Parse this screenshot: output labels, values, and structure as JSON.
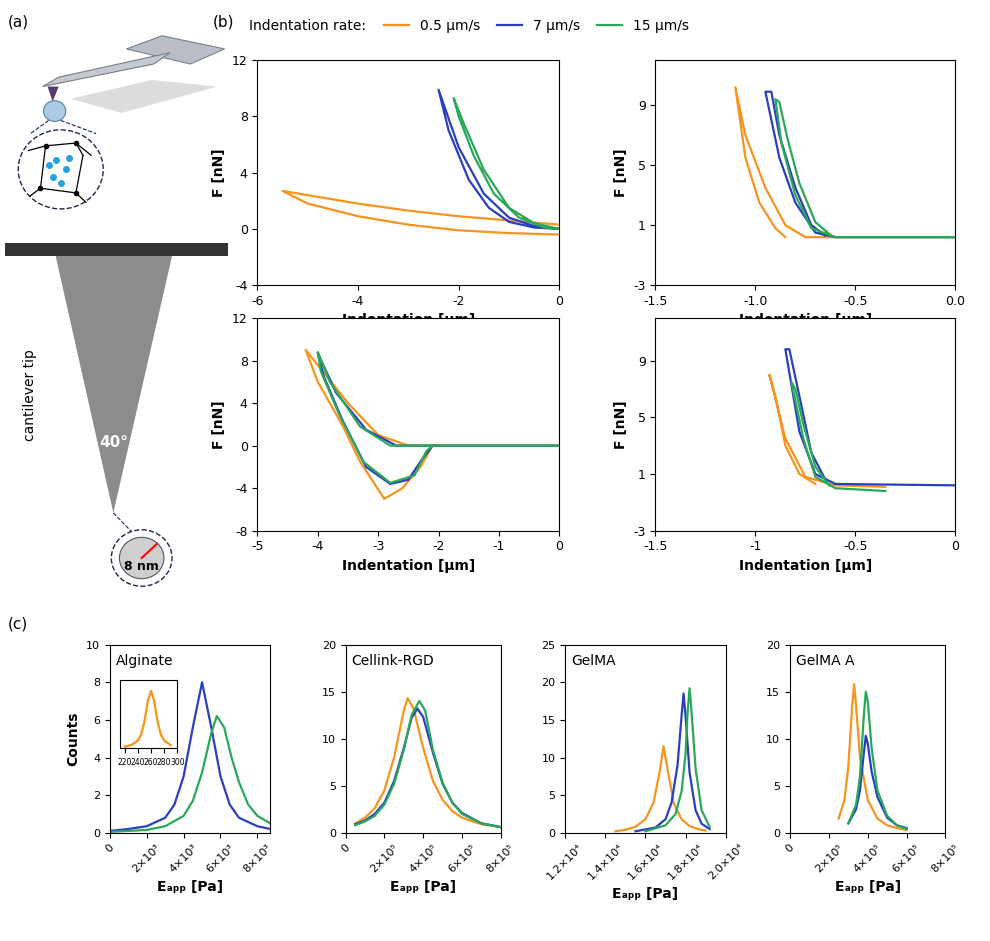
{
  "panel_labels": [
    "(a)",
    "(b)",
    "(c)"
  ],
  "diagram": {
    "tip_label": "cantilever tip",
    "angle": "40°",
    "radius": "8 nm"
  },
  "legend_title": "Indentation rate:",
  "chart_data": [
    {
      "type": "line",
      "x_label": "Indentation [µm]",
      "y_label": "F [nN]",
      "xlim": [
        -6,
        0
      ],
      "ylim": [
        -4,
        12
      ],
      "xticks": [
        -6,
        -4,
        -2,
        0
      ],
      "yticks": [
        -4,
        0,
        4,
        8,
        12
      ],
      "series": [
        {
          "name": "0.5 µm/s",
          "color": "#f7941d",
          "x": [
            0,
            -1,
            -2,
            -3,
            -4,
            -5,
            -5.5,
            -5,
            -4,
            -3,
            -2,
            -1,
            0
          ],
          "values": [
            0.3,
            0.6,
            0.9,
            1.3,
            1.8,
            2.4,
            2.7,
            1.8,
            0.9,
            0.3,
            -0.1,
            -0.3,
            -0.4
          ]
        },
        {
          "name": "7 µm/s",
          "color": "#2a3fbf",
          "x": [
            0,
            -0.5,
            -1,
            -1.5,
            -2,
            -2.4,
            -2.2,
            -1.8,
            -1.4,
            -1,
            -0.5,
            0
          ],
          "values": [
            0,
            0.2,
            0.8,
            2.5,
            5.8,
            9.9,
            7.0,
            3.5,
            1.5,
            0.5,
            0.1,
            0
          ]
        },
        {
          "name": "15 µm/s",
          "color": "#2aa85a",
          "x": [
            0,
            -0.5,
            -1,
            -1.5,
            -1.9,
            -2.1,
            -2.0,
            -1.7,
            -1.3,
            -0.8,
            -0.3,
            0
          ],
          "values": [
            0,
            0.4,
            1.5,
            4.2,
            7.5,
            9.3,
            8.0,
            5.2,
            2.5,
            0.8,
            0.1,
            0
          ]
        }
      ]
    },
    {
      "type": "line",
      "x_label": "Indentation [µm]",
      "y_label": "F [nN]",
      "xlim": [
        -1.5,
        0
      ],
      "ylim": [
        -3,
        12
      ],
      "xticks": [
        -1.5,
        {
          "value": -1,
          "label": "-1.0"
        },
        -0.5,
        {
          "value": 0,
          "label": "0.0"
        }
      ],
      "yticks": [
        -3,
        1,
        5,
        9
      ],
      "series": [
        {
          "name": "0.5 µm/s",
          "color": "#f7941d",
          "x": [
            0,
            -0.5,
            -0.75,
            -0.85,
            -0.95,
            -1.05,
            -1.1,
            -1.05,
            -0.98,
            -0.9,
            -0.85
          ],
          "values": [
            0.2,
            0.2,
            0.2,
            1.0,
            3.5,
            7.0,
            10.2,
            5.5,
            2.5,
            0.8,
            0.2
          ]
        },
        {
          "name": "7 µm/s",
          "color": "#2a3fbf",
          "x": [
            0,
            -0.6,
            -0.7,
            -0.8,
            -0.88,
            -0.95,
            -0.92,
            -0.88,
            -0.8,
            -0.72,
            -0.65
          ],
          "values": [
            0.2,
            0.2,
            0.5,
            2.5,
            5.5,
            9.9,
            9.9,
            7.0,
            3.5,
            1.0,
            0.3
          ]
        },
        {
          "name": "15 µm/s",
          "color": "#2aa85a",
          "x": [
            0,
            -0.6,
            -0.72,
            -0.8,
            -0.87,
            -0.9,
            -0.88,
            -0.84,
            -0.78,
            -0.7,
            -0.62
          ],
          "values": [
            0.2,
            0.2,
            0.8,
            3.0,
            6.5,
            9.4,
            9.2,
            6.8,
            3.8,
            1.2,
            0.3
          ]
        }
      ]
    },
    {
      "type": "line",
      "x_label": "Indentation [µm]",
      "y_label": "F [nN]",
      "xlim": [
        -5,
        0
      ],
      "ylim": [
        -8,
        12
      ],
      "xticks": [
        -5,
        -4,
        -3,
        -2,
        -1,
        0
      ],
      "yticks": [
        -8,
        -4,
        0,
        4,
        8,
        12
      ],
      "series": [
        {
          "name": "0.5 µm/s",
          "color": "#f7941d",
          "x": [
            0,
            -2,
            -2.5,
            -3,
            -3.5,
            -4.2,
            -4.0,
            -3.6,
            -3.3,
            -2.9,
            -2.6,
            -2.3,
            -2.1,
            -2
          ],
          "values": [
            0,
            0,
            0,
            1,
            4,
            9,
            6,
            2,
            -1.5,
            -5,
            -4,
            -2,
            0,
            0
          ]
        },
        {
          "name": "7 µm/s",
          "color": "#2a3fbf",
          "x": [
            0,
            -2.7,
            -3.2,
            -3.7,
            -4.0,
            -3.9,
            -3.6,
            -3.2,
            -2.8,
            -2.5,
            -2.3,
            -2.1
          ],
          "values": [
            0,
            0,
            1.5,
            5,
            8.7,
            6.5,
            2.5,
            -2,
            -3.6,
            -3.2,
            -1.5,
            0
          ]
        },
        {
          "name": "15 µm/s",
          "color": "#2aa85a",
          "x": [
            0,
            -2.8,
            -3.3,
            -3.8,
            -4.0,
            -3.95,
            -3.65,
            -3.25,
            -2.8,
            -2.4,
            -2.2,
            -2.1
          ],
          "values": [
            0,
            0,
            1.8,
            6,
            8.8,
            7,
            3,
            -1.5,
            -3.5,
            -2.8,
            -0.5,
            0
          ]
        }
      ]
    },
    {
      "type": "line",
      "x_label": "Indentation [µm]",
      "y_label": "F [nN]",
      "xlim": [
        -1.5,
        0
      ],
      "ylim": [
        -3,
        12
      ],
      "xticks": [
        -1.5,
        -1,
        -0.5,
        0
      ],
      "yticks": [
        -3,
        1,
        5,
        9
      ],
      "series": [
        {
          "name": "0.5 µm/s",
          "color": "#f7941d",
          "x": [
            -0.35,
            -0.6,
            -0.75,
            -0.85,
            -0.93,
            -0.9,
            -0.85,
            -0.78,
            -0.7
          ],
          "values": [
            0.1,
            0.2,
            0.8,
            3.5,
            8.0,
            6.5,
            3.0,
            1.0,
            0.3
          ]
        },
        {
          "name": "7 µm/s",
          "color": "#2a3fbf",
          "x": [
            0,
            -0.6,
            -0.7,
            -0.78,
            -0.85,
            -0.83,
            -0.78,
            -0.72,
            -0.65
          ],
          "values": [
            0.2,
            0.3,
            1.0,
            4,
            9.8,
            9.8,
            6.5,
            2.5,
            0.6
          ]
        },
        {
          "name": "15 µm/s",
          "color": "#2aa85a",
          "x": [
            -0.35,
            -0.6,
            -0.7,
            -0.76,
            -0.82,
            -0.8,
            -0.76,
            -0.7,
            -0.63
          ],
          "values": [
            -0.2,
            0.0,
            0.8,
            3.5,
            7.5,
            7.0,
            4.5,
            1.5,
            0.2
          ]
        }
      ]
    },
    {
      "type": "line",
      "title": "Alginate",
      "x_label": "Eₐₚₚ [Pa]",
      "y_label": "Counts",
      "xlim": [
        0,
        8700
      ],
      "ylim": [
        0,
        10
      ],
      "xticks": [
        0,
        {
          "value": 2000,
          "label": "2×10³"
        },
        {
          "value": 4000,
          "label": "4×10³"
        },
        {
          "value": 6000,
          "label": "6×10³"
        },
        {
          "value": 8000,
          "label": "8×10³"
        }
      ],
      "yticks": [
        0,
        2,
        4,
        6,
        8,
        10
      ],
      "series": [
        {
          "name": "7 µm/s",
          "color": "#2a3fbf",
          "x": [
            0,
            1000,
            2000,
            3000,
            3500,
            4000,
            4500,
            5000,
            5500,
            6000,
            6500,
            7000,
            8000,
            8700
          ],
          "values": [
            0.1,
            0.2,
            0.35,
            0.8,
            1.5,
            3.0,
            5.6,
            8.0,
            5.6,
            3.0,
            1.5,
            0.8,
            0.35,
            0.2
          ]
        },
        {
          "name": "15 µm/s",
          "color": "#2aa85a",
          "x": [
            0,
            2000,
            3000,
            4000,
            4500,
            5000,
            5500,
            5800,
            6200,
            6600,
            7000,
            7500,
            8000,
            8700
          ],
          "values": [
            0.05,
            0.15,
            0.35,
            0.9,
            1.7,
            3.2,
            5.3,
            6.2,
            5.6,
            4.0,
            2.7,
            1.5,
            0.9,
            0.5
          ]
        }
      ],
      "inset": {
        "type": "line",
        "xlim": [
          212,
          300
        ],
        "ylim": [
          0,
          9
        ],
        "xticks": [
          220,
          240,
          260,
          280,
          300
        ],
        "tick_labels": "x",
        "series": [
          {
            "name": "0.5 µm/s",
            "color": "#f7941d",
            "x": [
              220,
              230,
              240,
              245,
              250,
              255,
              260,
              265,
              270,
              275,
              280,
              290
            ],
            "values": [
              0.2,
              0.4,
              1.0,
              1.8,
              3.5,
              6.2,
              7.6,
              6.2,
              3.5,
              1.8,
              1.0,
              0.4
            ]
          }
        ]
      }
    },
    {
      "type": "line",
      "title": "Cellink-RGD",
      "x_label": "Eₐₚₚ [Pa]",
      "xlim": [
        0,
        800000
      ],
      "ylim": [
        0,
        20
      ],
      "xticks": [
        0,
        {
          "value": 200000,
          "label": "2×10⁵"
        },
        {
          "value": 400000,
          "label": "4×10⁵"
        },
        {
          "value": 600000,
          "label": "6×10⁵"
        },
        {
          "value": 800000,
          "label": "8×10⁵"
        }
      ],
      "yticks": [
        0,
        5,
        10,
        15,
        20
      ],
      "series": [
        {
          "name": "0.5 µm/s",
          "color": "#f7941d",
          "x": [
            50000,
            100000,
            150000,
            200000,
            250000,
            300000,
            320000,
            350000,
            400000,
            450000,
            500000,
            550000,
            600000,
            700000,
            800000
          ],
          "values": [
            1.0,
            1.6,
            2.6,
            4.5,
            8.0,
            13.0,
            14.3,
            13.2,
            9.0,
            5.5,
            3.5,
            2.3,
            1.6,
            0.9,
            0.6
          ]
        },
        {
          "name": "7 µm/s",
          "color": "#2a3fbf",
          "x": [
            50000,
            100000,
            150000,
            200000,
            250000,
            300000,
            340000,
            370000,
            400000,
            450000,
            500000,
            550000,
            600000,
            700000,
            800000
          ],
          "values": [
            0.9,
            1.3,
            2.0,
            3.2,
            5.5,
            9.0,
            12.2,
            13.2,
            12.3,
            8.5,
            5.2,
            3.2,
            2.1,
            1.0,
            0.6
          ]
        },
        {
          "name": "15 µm/s",
          "color": "#2aa85a",
          "x": [
            50000,
            100000,
            150000,
            200000,
            250000,
            300000,
            340000,
            380000,
            410000,
            450000,
            500000,
            550000,
            600000,
            700000,
            800000
          ],
          "values": [
            0.8,
            1.2,
            1.8,
            3.0,
            5.2,
            8.8,
            12.5,
            14.0,
            13.0,
            8.8,
            5.3,
            3.2,
            2.0,
            1.0,
            0.6
          ]
        }
      ]
    },
    {
      "type": "line",
      "title": "GelMA",
      "x_label": "Eₐₚₚ [Pa]",
      "xlim": [
        12000,
        20000
      ],
      "ylim": [
        0,
        25
      ],
      "xticks": [
        {
          "value": 12000,
          "label": "1.2×10⁴"
        },
        {
          "value": 14000,
          "label": "1.4×10⁴"
        },
        {
          "value": 16000,
          "label": "1.6×10⁴"
        },
        {
          "value": 18000,
          "label": "1.8×10⁴"
        },
        {
          "value": 20000,
          "label": "2.0×10⁴"
        }
      ],
      "yticks": [
        0,
        5,
        10,
        15,
        20,
        25
      ],
      "series": [
        {
          "name": "0.5 µm/s",
          "color": "#f7941d",
          "x": [
            14500,
            15000,
            15500,
            16000,
            16400,
            16700,
            16900,
            17100,
            17400,
            17800,
            18200,
            18600,
            19000
          ],
          "values": [
            0.2,
            0.4,
            0.8,
            1.8,
            4.0,
            8.0,
            11.5,
            8.5,
            4.0,
            1.8,
            0.9,
            0.5,
            0.3
          ]
        },
        {
          "name": "7 µm/s",
          "color": "#2a3fbf",
          "x": [
            15500,
            16500,
            17000,
            17300,
            17600,
            17800,
            17900,
            18000,
            18200,
            18500,
            18800,
            19200
          ],
          "values": [
            0.2,
            0.7,
            1.8,
            4.0,
            9.0,
            15.5,
            18.5,
            15.5,
            8.0,
            3.0,
            1.2,
            0.5
          ]
        },
        {
          "name": "15 µm/s",
          "color": "#2aa85a",
          "x": [
            16000,
            17000,
            17500,
            17800,
            18000,
            18100,
            18200,
            18300,
            18500,
            18800,
            19200
          ],
          "values": [
            0.2,
            1.0,
            2.5,
            5.5,
            10.5,
            16.0,
            19.2,
            16.0,
            8.5,
            3.0,
            0.8
          ]
        }
      ]
    },
    {
      "type": "line",
      "title": "GelMA A",
      "x_label": "Eₐₚₚ [Pa]",
      "xlim": [
        0,
        800000
      ],
      "ylim": [
        0,
        20
      ],
      "xticks": [
        0,
        {
          "value": 200000,
          "label": "2×10⁵"
        },
        {
          "value": 400000,
          "label": "4×10⁵"
        },
        {
          "value": 600000,
          "label": "6×10⁵"
        },
        {
          "value": 800000,
          "label": "8×10⁵"
        }
      ],
      "yticks": [
        0,
        5,
        10,
        15,
        20
      ],
      "series": [
        {
          "name": "0.5 µm/s",
          "color": "#f7941d",
          "x": [
            250000,
            280000,
            300000,
            320000,
            330000,
            340000,
            360000,
            400000,
            450000,
            500000,
            550000,
            600000
          ],
          "values": [
            1.5,
            3.5,
            7.0,
            13.5,
            15.8,
            13.5,
            8.0,
            3.5,
            1.5,
            0.8,
            0.5,
            0.3
          ]
        },
        {
          "name": "7 µm/s",
          "color": "#2a3fbf",
          "x": [
            300000,
            340000,
            360000,
            380000,
            390000,
            400000,
            420000,
            450000,
            500000,
            550000,
            600000
          ],
          "values": [
            1.0,
            2.5,
            4.5,
            8.5,
            10.3,
            9.5,
            6.5,
            3.8,
            1.6,
            0.8,
            0.5
          ]
        },
        {
          "name": "15 µm/s",
          "color": "#2aa85a",
          "x": [
            300000,
            340000,
            360000,
            380000,
            390000,
            400000,
            420000,
            450000,
            500000,
            550000,
            600000
          ],
          "values": [
            1.0,
            3.0,
            6.0,
            12.5,
            15.0,
            14.0,
            9.0,
            4.5,
            1.8,
            0.8,
            0.4
          ]
        }
      ]
    }
  ]
}
